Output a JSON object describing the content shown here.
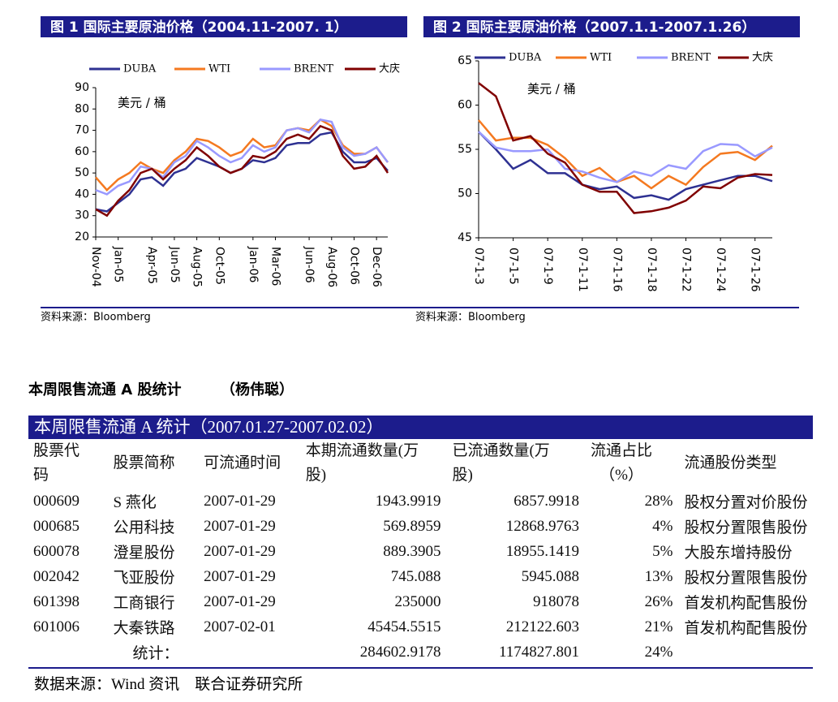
{
  "chart_data": [
    {
      "type": "line",
      "title": "图 1 国际主要原油价格（2004.11-2007. 1）",
      "unit_label": "美元 / 桶",
      "source": "资料来源：Bloomberg",
      "categories": [
        "Nov-04",
        null,
        "Jan-05",
        null,
        null,
        "Apr-05",
        null,
        "Jun-05",
        null,
        "Aug-05",
        null,
        "Oct-05",
        null,
        null,
        "Jan-06",
        null,
        "Mar-06",
        null,
        null,
        "Jun-06",
        null,
        "Aug-06",
        null,
        "Oct-06",
        null,
        "Dec-06",
        null
      ],
      "ylim": [
        20,
        90
      ],
      "yticks": [
        20,
        30,
        40,
        50,
        60,
        70,
        80,
        90
      ],
      "series": [
        {
          "name": "DUBA",
          "color": "#2e3192",
          "values": [
            33,
            32,
            36,
            40,
            47,
            48,
            44,
            50,
            52,
            57,
            55,
            53,
            50,
            52,
            56,
            55,
            57,
            63,
            64,
            64,
            68,
            69,
            60,
            55,
            55,
            57,
            51
          ]
        },
        {
          "name": "WTI",
          "color": "#f47920",
          "values": [
            48,
            42,
            47,
            50,
            55,
            52,
            50,
            56,
            60,
            66,
            65,
            62,
            58,
            60,
            66,
            62,
            63,
            70,
            71,
            70,
            75,
            72,
            63,
            59,
            59,
            62,
            55
          ]
        },
        {
          "name": "BRENT",
          "color": "#9999ff",
          "values": [
            42,
            40,
            44,
            46,
            53,
            52,
            48,
            55,
            58,
            65,
            62,
            58,
            55,
            57,
            63,
            60,
            62,
            70,
            71,
            69,
            75,
            74,
            62,
            58,
            59,
            62,
            55
          ]
        },
        {
          "name": "大庆",
          "color": "#800000",
          "values": [
            33,
            30,
            37,
            42,
            50,
            52,
            47,
            52,
            56,
            62,
            58,
            53,
            50,
            52,
            58,
            57,
            60,
            66,
            68,
            66,
            72,
            70,
            58,
            52,
            53,
            58,
            50
          ]
        }
      ]
    },
    {
      "type": "line",
      "title": "图 2 国际主要原油价格（2007.1.1-2007.1.26）",
      "unit_label": "美元 / 桶",
      "source": "资料来源：Bloomberg",
      "categories": [
        "07-1-3",
        null,
        "07-1-5",
        null,
        "07-1-9",
        null,
        "07-1-11",
        null,
        "07-1-16",
        null,
        "07-1-18",
        null,
        "07-1-22",
        null,
        "07-1-24",
        null,
        "07-1-26",
        null
      ],
      "ylim": [
        45,
        65
      ],
      "yticks": [
        45,
        50,
        55,
        60,
        65
      ],
      "series": [
        {
          "name": "DUBA",
          "color": "#2e3192",
          "values": [
            57,
            55,
            52.8,
            53.8,
            52.3,
            52.3,
            51,
            50.5,
            50.8,
            49.5,
            49.8,
            49.3,
            50.5,
            51,
            51.5,
            52,
            52,
            51.4
          ]
        },
        {
          "name": "WTI",
          "color": "#f47920",
          "values": [
            58.3,
            56,
            56.3,
            56.3,
            55.5,
            54,
            52,
            52.9,
            51.3,
            52,
            50.6,
            52,
            51,
            53,
            54.5,
            54.7,
            53.8,
            55.4
          ]
        },
        {
          "name": "BRENT",
          "color": "#9999ff",
          "values": [
            57,
            55.2,
            54.8,
            54.8,
            55,
            52.8,
            52.5,
            51.8,
            51.3,
            52.5,
            52,
            53.2,
            52.8,
            54.8,
            55.6,
            55.5,
            54.2,
            55.2
          ]
        },
        {
          "name": "大庆",
          "color": "#800000",
          "values": [
            62.5,
            61,
            56,
            56.5,
            54.5,
            53.5,
            51,
            50.2,
            50.2,
            47.8,
            48,
            48.4,
            49.2,
            50.8,
            50.6,
            51.8,
            52.2,
            52.1
          ]
        }
      ]
    }
  ],
  "document": {
    "section_heading": "本周限售流通 A 股统计",
    "author": "（杨伟聪）",
    "table": {
      "title": "本周限售流通 A 统计（2007.01.27-2007.02.02）",
      "header": [
        "股票代码",
        "股票简称",
        "可流通时间",
        "本期流通数量(万股)",
        "已流通数量(万股)",
        "流通占比（%）",
        "流通股份类型"
      ],
      "rows": [
        [
          "000609",
          "S 燕化",
          "2007-01-29",
          "1943.9919",
          "6857.9918",
          "28%",
          "股权分置对价股份"
        ],
        [
          "000685",
          "公用科技",
          "2007-01-29",
          "569.8959",
          "12868.9763",
          "4%",
          "股权分置限售股份"
        ],
        [
          "600078",
          "澄星股份",
          "2007-01-29",
          "889.3905",
          "18955.1419",
          "5%",
          "大股东增持股份"
        ],
        [
          "002042",
          "飞亚股份",
          "2007-01-29",
          "745.088",
          "5945.088",
          "13%",
          "股权分置限售股份"
        ],
        [
          "601398",
          "工商银行",
          "2007-01-29",
          "235000",
          "918078",
          "26%",
          "首发机构配售股份"
        ],
        [
          "601006",
          "大秦铁路",
          "2007-02-01",
          "45454.5515",
          "212122.603",
          "21%",
          "首发机构配售股份"
        ]
      ],
      "total": {
        "label": "统计：",
        "current": "284602.9178",
        "circulated": "1174827.801",
        "ratio": "24%"
      }
    },
    "footer": "数据来源：Wind 资讯　联合证券研究所"
  }
}
